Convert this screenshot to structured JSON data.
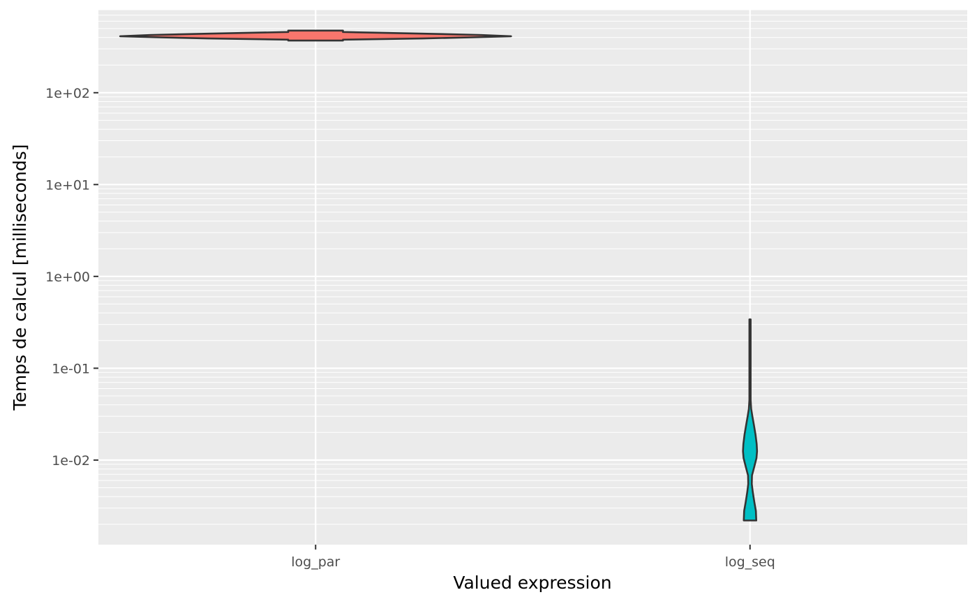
{
  "chart_data": {
    "type": "violin",
    "title": "",
    "xlabel": "Valued expression",
    "ylabel": "Temps de calcul [milliseconds]",
    "y_scale": "log10",
    "ylim": [
      0.0012,
      800
    ],
    "grid": true,
    "legend": "none",
    "categories": [
      "log_par",
      "log_seq"
    ],
    "y_ticks": [
      {
        "value": 0.01,
        "label": "1e-02"
      },
      {
        "value": 0.1,
        "label": "1e-01"
      },
      {
        "value": 1,
        "label": "1e+00"
      },
      {
        "value": 10,
        "label": "1e+01"
      },
      {
        "value": 100,
        "label": "1e+02"
      }
    ],
    "series": [
      {
        "category": "log_par",
        "fill": "#F8766D",
        "min": 370,
        "max": 475,
        "density": [
          {
            "y": 370,
            "w": 0.14
          },
          {
            "y": 378,
            "w": 0.14
          },
          {
            "y": 390,
            "w": 0.55
          },
          {
            "y": 400,
            "w": 0.78
          },
          {
            "y": 412,
            "w": 1.0
          },
          {
            "y": 425,
            "w": 0.85
          },
          {
            "y": 440,
            "w": 0.55
          },
          {
            "y": 458,
            "w": 0.14
          },
          {
            "y": 470,
            "w": 0.14
          },
          {
            "y": 475,
            "w": 0.14
          }
        ]
      },
      {
        "category": "log_seq",
        "fill": "#00BFC4",
        "min": 0.0022,
        "max": 0.34,
        "density": [
          {
            "y": 0.0022,
            "w": 0.032
          },
          {
            "y": 0.0028,
            "w": 0.03
          },
          {
            "y": 0.0035,
            "w": 0.022
          },
          {
            "y": 0.0045,
            "w": 0.014
          },
          {
            "y": 0.0055,
            "w": 0.009
          },
          {
            "y": 0.0068,
            "w": 0.01
          },
          {
            "y": 0.0085,
            "w": 0.022
          },
          {
            "y": 0.0105,
            "w": 0.033
          },
          {
            "y": 0.0125,
            "w": 0.036
          },
          {
            "y": 0.015,
            "w": 0.034
          },
          {
            "y": 0.019,
            "w": 0.028
          },
          {
            "y": 0.024,
            "w": 0.02
          },
          {
            "y": 0.03,
            "w": 0.012
          },
          {
            "y": 0.036,
            "w": 0.006
          },
          {
            "y": 0.045,
            "w": 0.002
          },
          {
            "y": 0.06,
            "w": 0.0012
          },
          {
            "y": 0.1,
            "w": 0.001
          },
          {
            "y": 0.2,
            "w": 0.001
          },
          {
            "y": 0.34,
            "w": 0.001
          }
        ]
      }
    ]
  }
}
